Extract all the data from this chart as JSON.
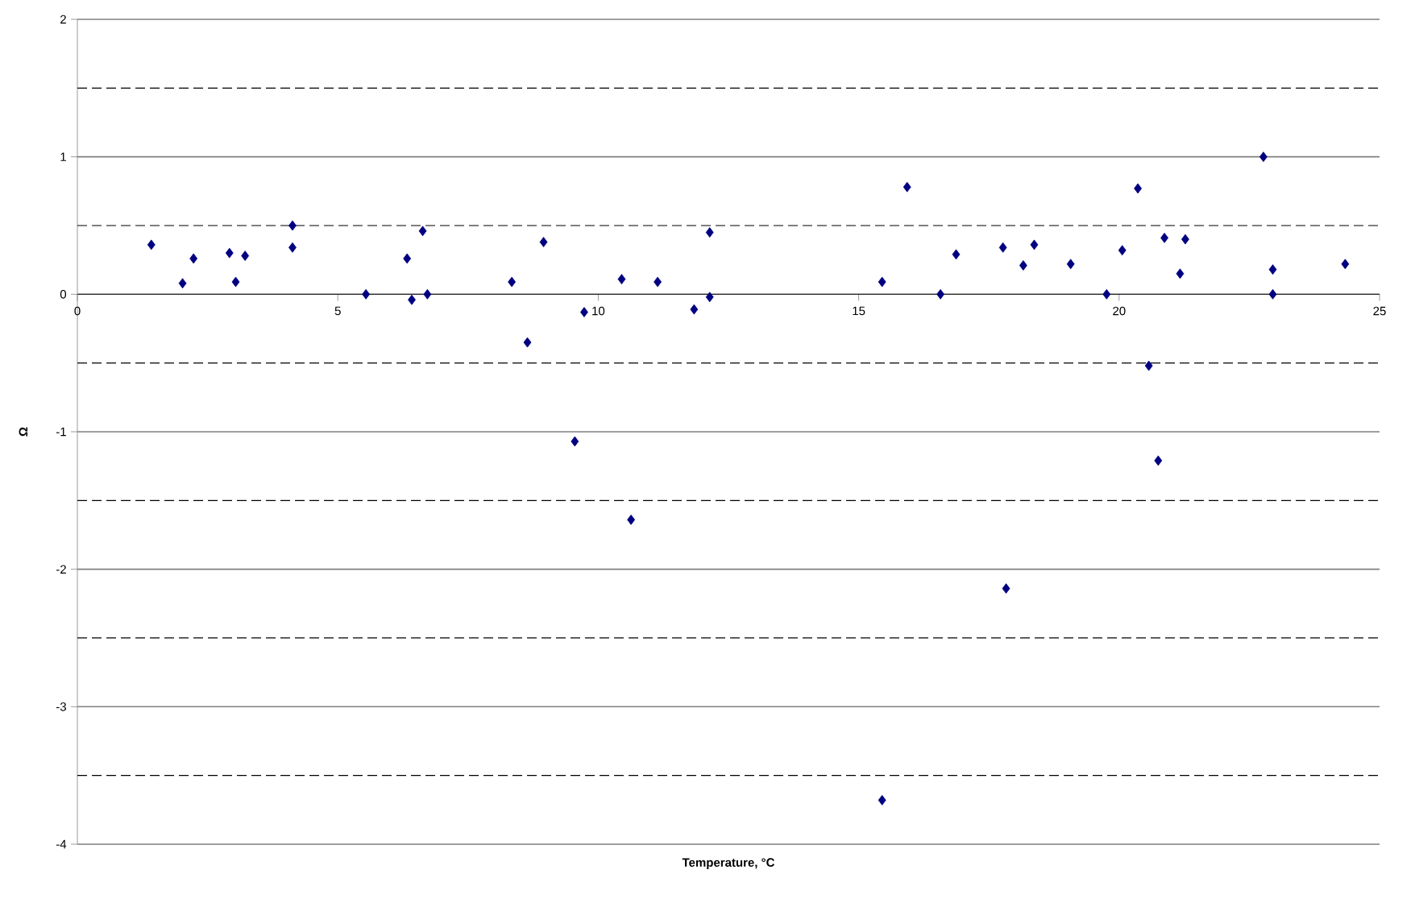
{
  "chart_data": {
    "type": "scatter",
    "xlabel": "Temperature, °C",
    "ylabel": "Ω",
    "xlim": [
      0,
      25
    ],
    "ylim": [
      -4,
      2
    ],
    "xticks": [
      0,
      5,
      10,
      15,
      20,
      25
    ],
    "yticks": [
      -4,
      -3,
      -2,
      -1,
      0,
      1,
      2
    ],
    "grid": "y",
    "marker": "diamond",
    "ref_lines": [
      {
        "axis": "y",
        "value": 1.5,
        "color": "#000000",
        "line_style": "dashed"
      },
      {
        "axis": "y",
        "value": 0.5,
        "color": "#000000",
        "line_style": "dashed"
      },
      {
        "axis": "y",
        "value": -0.5,
        "color": "#000000",
        "line_style": "dashed"
      },
      {
        "axis": "y",
        "value": -1.5,
        "color": "#000000",
        "line_style": "dashed"
      },
      {
        "axis": "y",
        "value": -2.5,
        "color": "#000000",
        "line_style": "dashed"
      },
      {
        "axis": "y",
        "value": -3.5,
        "color": "#000000",
        "line_style": "dashed"
      }
    ],
    "series": [
      {
        "color": "#000080",
        "x": [
          1.42,
          2.02,
          2.23,
          2.92,
          3.04,
          3.22,
          4.13,
          4.13,
          5.54,
          6.33,
          6.42,
          6.63,
          6.72,
          8.34,
          8.64,
          8.95,
          9.55,
          9.73,
          10.45,
          10.63,
          11.14,
          11.84,
          12.14,
          12.14,
          15.45,
          15.93,
          16.57,
          16.87,
          17.77,
          17.83,
          18.16,
          18.37,
          19.07,
          19.76,
          20.06,
          20.36,
          20.57,
          20.75,
          20.87,
          21.17,
          21.27,
          22.77,
          22.95,
          22.95,
          24.34,
          15.45
        ],
        "values": [
          0.36,
          0.08,
          0.26,
          0.3,
          0.09,
          0.28,
          0.5,
          0.34,
          0.0,
          0.26,
          -0.04,
          0.46,
          0.0,
          0.09,
          -0.35,
          0.38,
          -1.07,
          -0.13,
          0.11,
          -1.64,
          0.09,
          -0.11,
          0.45,
          -0.02,
          0.09,
          0.78,
          0.0,
          0.29,
          0.34,
          -2.14,
          0.21,
          0.36,
          0.22,
          0.0,
          0.32,
          0.77,
          -0.52,
          -1.21,
          0.41,
          0.15,
          0.4,
          1.0,
          0.18,
          0.0,
          0.22,
          -3.68
        ]
      }
    ]
  }
}
